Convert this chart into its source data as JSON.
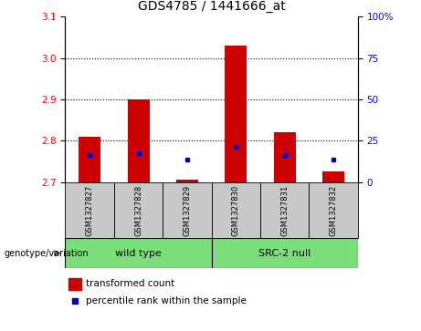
{
  "title": "GDS4785 / 1441666_at",
  "samples": [
    "GSM1327827",
    "GSM1327828",
    "GSM1327829",
    "GSM1327830",
    "GSM1327831",
    "GSM1327832"
  ],
  "group_labels": [
    "wild type",
    "SRC-2 null"
  ],
  "bar_base": 2.7,
  "red_values": [
    2.81,
    2.9,
    2.705,
    3.03,
    2.82,
    2.725
  ],
  "blue_values": [
    2.765,
    2.77,
    2.755,
    2.785,
    2.765,
    2.755
  ],
  "ylim_left": [
    2.7,
    3.1
  ],
  "ylim_right": [
    0,
    100
  ],
  "yticks_left": [
    2.7,
    2.8,
    2.9,
    3.0,
    3.1
  ],
  "yticks_right": [
    0,
    25,
    50,
    75,
    100
  ],
  "ytick_labels_right": [
    "0",
    "25",
    "50",
    "75",
    "100%"
  ],
  "grid_values": [
    2.8,
    2.9,
    3.0
  ],
  "bar_color": "#cc0000",
  "dot_color": "#0000cc",
  "bg_sample": "#c8c8c8",
  "bg_group": "#7adf7a",
  "legend_red": "transformed count",
  "legend_blue": "percentile rank within the sample",
  "genotype_label": "genotype/variation"
}
